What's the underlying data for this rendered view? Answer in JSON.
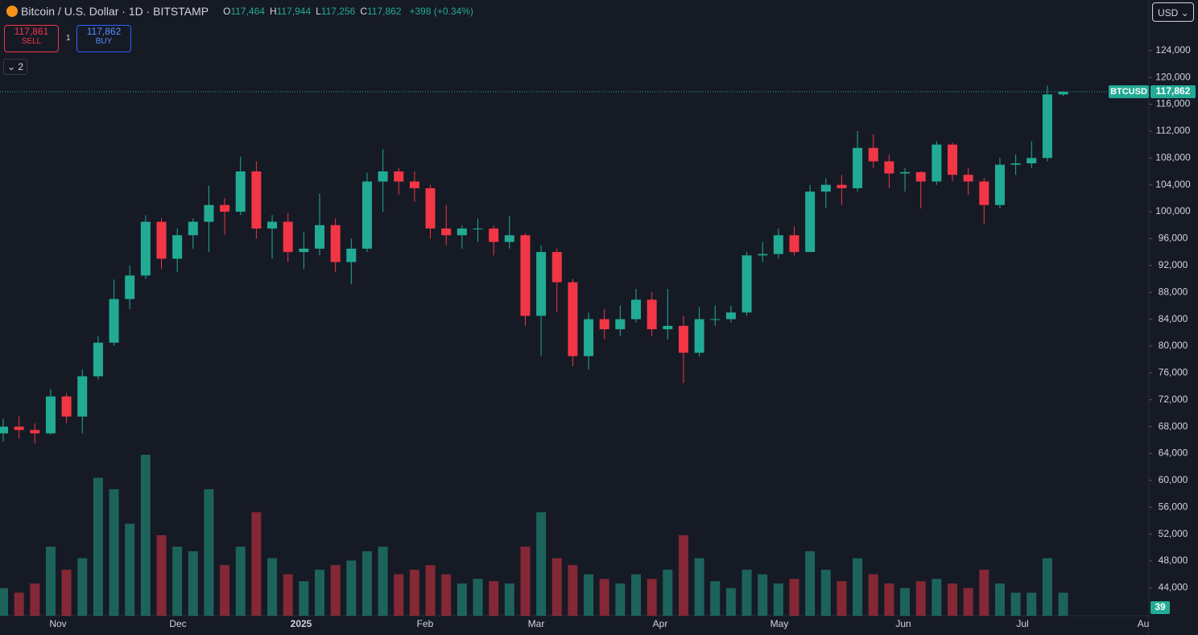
{
  "header": {
    "symbol": "Bitcoin / U.S. Dollar · 1D · BITSTAMP",
    "ohlc": [
      {
        "label": "O",
        "value": "117,464"
      },
      {
        "label": "H",
        "value": "117,944"
      },
      {
        "label": "L",
        "value": "117,256"
      },
      {
        "label": "C",
        "value": "117,862"
      }
    ],
    "change": "+398 (+0.34%)",
    "sell_price": "117,861",
    "sell_label": "SELL",
    "spread": "1",
    "buy_price": "117,862",
    "buy_label": "BUY",
    "indicators": "2",
    "currency": "USD"
  },
  "chart_data": {
    "type": "candlestick",
    "time_labels": [
      "Nov",
      "Dec",
      "2025",
      "Feb",
      "Mar",
      "Apr",
      "May",
      "Jun",
      "Jul",
      "Au"
    ],
    "candles": {
      "open": [
        67000,
        68000,
        67500,
        67000,
        72500,
        69500,
        75500,
        80500,
        87000,
        90500,
        98500,
        93000,
        96500,
        98500,
        101000,
        100000,
        106000,
        97500,
        98500,
        94000,
        94500,
        98000,
        92500,
        94500,
        104500,
        106000,
        104500,
        103500,
        97500,
        96500,
        97500,
        97500,
        95500,
        96500,
        84500,
        94000,
        89500,
        78500,
        84000,
        82500,
        84000,
        86900,
        82500,
        83000,
        79000,
        84000,
        84000,
        85000,
        93500,
        93700,
        96500,
        94000,
        103000,
        104000,
        103500,
        109500,
        107500,
        105700,
        105900,
        104500,
        110000,
        105500,
        104500,
        101000,
        107000,
        107200,
        108000,
        117464
      ],
      "high": [
        69200,
        69500,
        68500,
        73600,
        73000,
        76500,
        81500,
        89900,
        92000,
        99500,
        99000,
        97500,
        99000,
        103900,
        102000,
        108200,
        107500,
        99500,
        99800,
        97000,
        102700,
        99000,
        96000,
        105800,
        109300,
        106500,
        106000,
        104000,
        101000,
        98000,
        99000,
        98000,
        99400,
        96800,
        95000,
        94500,
        90000,
        85000,
        85500,
        86000,
        88500,
        88000,
        88500,
        84500,
        85800,
        86000,
        86000,
        94000,
        95500,
        97500,
        97800,
        104000,
        105000,
        105500,
        112000,
        111500,
        108500,
        106500,
        106000,
        110500,
        110300,
        106500,
        105000,
        108000,
        108500,
        110500,
        118800,
        117944
      ],
      "low": [
        65800,
        66200,
        65500,
        66800,
        68500,
        67000,
        75000,
        80000,
        85500,
        90000,
        91500,
        91000,
        94500,
        94000,
        96500,
        99500,
        96000,
        93000,
        92500,
        91500,
        93500,
        91000,
        89200,
        94000,
        100000,
        102500,
        101500,
        96000,
        95000,
        94500,
        95500,
        93500,
        94500,
        83000,
        78500,
        85000,
        77000,
        76500,
        81000,
        81500,
        83500,
        81500,
        81000,
        74500,
        78500,
        83000,
        83500,
        84500,
        92500,
        93000,
        93500,
        94000,
        100500,
        101000,
        103000,
        106500,
        103500,
        103000,
        100500,
        104000,
        104500,
        102500,
        98200,
        100500,
        105500,
        106500,
        107500,
        117256
      ],
      "close": [
        68000,
        67500,
        67000,
        72500,
        69500,
        75500,
        80500,
        87000,
        90500,
        98500,
        93000,
        96500,
        98500,
        101000,
        100000,
        106000,
        97500,
        98500,
        94000,
        94500,
        98000,
        92500,
        94500,
        104500,
        106000,
        104500,
        103500,
        97500,
        96500,
        97500,
        97500,
        95500,
        96500,
        84500,
        94000,
        89500,
        78500,
        84000,
        82500,
        84000,
        86900,
        82500,
        83000,
        79000,
        84000,
        84000,
        85000,
        93500,
        93700,
        96500,
        94000,
        103000,
        104000,
        103500,
        109500,
        107500,
        105700,
        105900,
        104500,
        110000,
        105500,
        104500,
        101000,
        107000,
        107200,
        108000,
        117464,
        117862
      ],
      "volume": [
        12,
        10,
        14,
        30,
        20,
        25,
        60,
        55,
        40,
        70,
        35,
        30,
        28,
        55,
        22,
        30,
        45,
        25,
        18,
        15,
        20,
        22,
        24,
        28,
        30,
        18,
        20,
        22,
        18,
        14,
        16,
        15,
        14,
        30,
        45,
        25,
        22,
        18,
        16,
        14,
        18,
        16,
        20,
        35,
        25,
        15,
        12,
        20,
        18,
        14,
        16,
        28,
        20,
        15,
        25,
        18,
        14,
        12,
        15,
        16,
        14,
        12,
        20,
        14,
        10,
        10,
        25,
        10
      ]
    },
    "up_color": "#22ab94",
    "down_color": "#f23645",
    "ylim": [
      39850,
      127930
    ],
    "yticks": [
      {
        "value": 44000,
        "label": "44,000"
      },
      {
        "value": 48000,
        "label": "48,000"
      },
      {
        "value": 52000,
        "label": "52,000"
      },
      {
        "value": 56000,
        "label": "56,000"
      },
      {
        "value": 60000,
        "label": "60,000"
      },
      {
        "value": 64000,
        "label": "64,000"
      },
      {
        "value": 68000,
        "label": "68,000"
      },
      {
        "value": 72000,
        "label": "72,000"
      },
      {
        "value": 76000,
        "label": "76,000"
      },
      {
        "value": 80000,
        "label": "80,000"
      },
      {
        "value": 84000,
        "label": "84,000"
      },
      {
        "value": 88000,
        "label": "88,000"
      },
      {
        "value": 92000,
        "label": "92,000"
      },
      {
        "value": 96000,
        "label": "96,000"
      },
      {
        "value": 100000,
        "label": "100,000"
      },
      {
        "value": 104000,
        "label": "104,000"
      },
      {
        "value": 108000,
        "label": "108,000"
      },
      {
        "value": 112000,
        "label": "112,000"
      },
      {
        "value": 116000,
        "label": "116,000"
      },
      {
        "value": 120000,
        "label": "120,000"
      },
      {
        "value": 124000,
        "label": "124,000"
      }
    ],
    "price_tag": "BTCUSD",
    "price_label": "117,862",
    "volume_label": "39"
  }
}
